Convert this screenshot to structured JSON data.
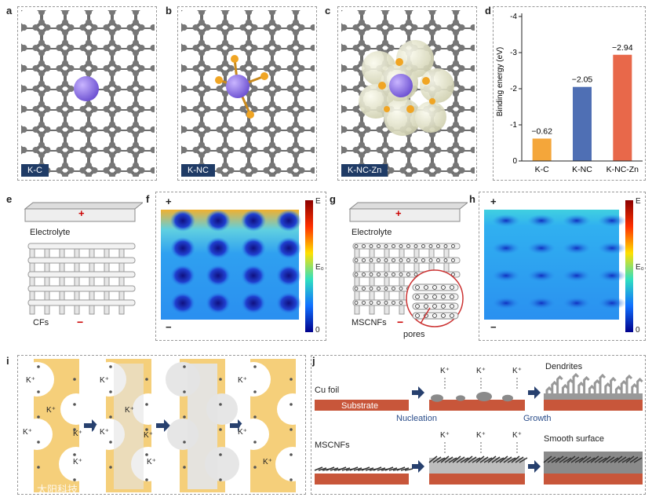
{
  "labels": {
    "a": "a",
    "b": "b",
    "c": "c",
    "d": "d",
    "e": "e",
    "f": "f",
    "g": "g",
    "h": "h",
    "i": "i",
    "j": "j"
  },
  "tags": {
    "a": "K-C",
    "b": "K-NC",
    "c": "K-NC-Zn"
  },
  "chart_data": {
    "type": "bar",
    "categories": [
      "K-C",
      "K-NC",
      "K-NC-Zn"
    ],
    "values": [
      -0.62,
      -2.05,
      -2.94
    ],
    "value_labels": [
      "−0.62",
      "−2.05",
      "−2.94"
    ],
    "colors": [
      "#f4a63a",
      "#4f6fb4",
      "#e8684a"
    ],
    "ylabel": "Binding energy  (eV)",
    "yticks": [
      "0",
      "-1",
      "-2",
      "-3",
      "-4"
    ],
    "ylim": [
      0,
      -4
    ]
  },
  "panel_e": {
    "electrolyte": "Electrolyte",
    "cfs": "CFs",
    "plus": "+",
    "minus": "−"
  },
  "panel_f": {
    "plus": "+",
    "minus": "−",
    "cb_top": "E",
    "cb_mid": "E₀",
    "cb_bot": "0"
  },
  "panel_g": {
    "electrolyte": "Electrolyte",
    "mscnfs": "MSCNFs",
    "pores": "pores",
    "plus": "+",
    "minus": "−"
  },
  "panel_h": {
    "plus": "+",
    "minus": "−",
    "cb_top": "E",
    "cb_mid": "E₀",
    "cb_bot": "0"
  },
  "panel_i": {
    "kplus": "K⁺"
  },
  "panel_j": {
    "cu_foil": "Cu foil",
    "substrate": "Substrate",
    "kplus": "K⁺",
    "dendrites": "Dendrites",
    "nucleation": "Nucleation",
    "growth": "Growth",
    "mscnfs": "MSCNFs",
    "smooth": "Smooth surface"
  },
  "watermark": "太阳科技"
}
